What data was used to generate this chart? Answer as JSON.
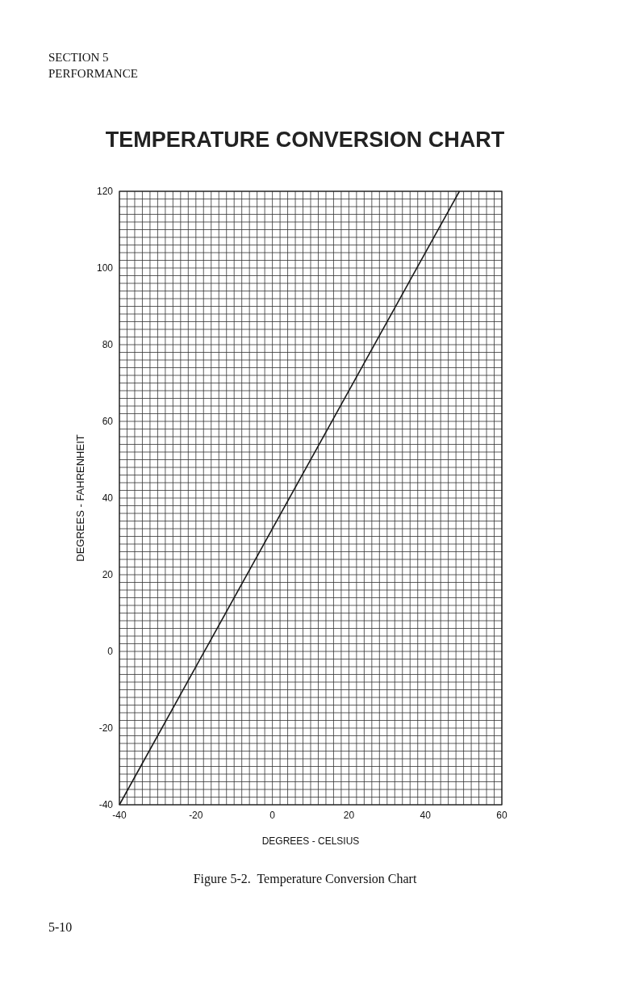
{
  "chart_data": {
    "type": "line",
    "title": "TEMPERATURE CONVERSION CHART",
    "xlabel": "DEGREES - CELSIUS",
    "ylabel": "DEGREES - FAHRENHEIT",
    "annotations": [
      "SECTION 5",
      "PERFORMANCE",
      "Figure 5-2.  Temperature Conversion Chart",
      "5-10"
    ],
    "series": [
      {
        "color": "#1a1a1a",
        "x": [
          -40,
          48.9
        ],
        "values": [
          -40,
          120
        ]
      }
    ],
    "xlim": [
      -40,
      60
    ],
    "ylim": [
      -40,
      120
    ],
    "xticks": [
      -40,
      {
        "value": -38,
        "label": null
      },
      {
        "value": -36,
        "label": null
      },
      {
        "value": -34,
        "label": null
      },
      {
        "value": -32,
        "label": null
      },
      {
        "value": -30,
        "label": null
      },
      {
        "value": -28,
        "label": null
      },
      {
        "value": -26,
        "label": null
      },
      {
        "value": -24,
        "label": null
      },
      {
        "value": -22,
        "label": null
      },
      -20,
      {
        "value": -18,
        "label": null
      },
      {
        "value": -16,
        "label": null
      },
      {
        "value": -14,
        "label": null
      },
      {
        "value": -12,
        "label": null
      },
      {
        "value": -10,
        "label": null
      },
      {
        "value": -8,
        "label": null
      },
      {
        "value": -6,
        "label": null
      },
      {
        "value": -4,
        "label": null
      },
      {
        "value": -2,
        "label": null
      },
      0,
      {
        "value": 2,
        "label": null
      },
      {
        "value": 4,
        "label": null
      },
      {
        "value": 6,
        "label": null
      },
      {
        "value": 8,
        "label": null
      },
      {
        "value": 10,
        "label": null
      },
      {
        "value": 12,
        "label": null
      },
      {
        "value": 14,
        "label": null
      },
      {
        "value": 16,
        "label": null
      },
      {
        "value": 18,
        "label": null
      },
      20,
      {
        "value": 22,
        "label": null
      },
      {
        "value": 24,
        "label": null
      },
      {
        "value": 26,
        "label": null
      },
      {
        "value": 28,
        "label": null
      },
      {
        "value": 30,
        "label": null
      },
      {
        "value": 32,
        "label": null
      },
      {
        "value": 34,
        "label": null
      },
      {
        "value": 36,
        "label": null
      },
      {
        "value": 38,
        "label": null
      },
      40,
      {
        "value": 42,
        "label": null
      },
      {
        "value": 44,
        "label": null
      },
      {
        "value": 46,
        "label": null
      },
      {
        "value": 48,
        "label": null
      },
      {
        "value": 50,
        "label": null
      },
      {
        "value": 52,
        "label": null
      },
      {
        "value": 54,
        "label": null
      },
      {
        "value": 56,
        "label": null
      },
      {
        "value": 58,
        "label": null
      },
      60
    ],
    "yticks": [
      -40,
      {
        "value": -38,
        "label": null
      },
      {
        "value": -36,
        "label": null
      },
      {
        "value": -34,
        "label": null
      },
      {
        "value": -32,
        "label": null
      },
      {
        "value": -30,
        "label": null
      },
      {
        "value": -28,
        "label": null
      },
      {
        "value": -26,
        "label": null
      },
      {
        "value": -24,
        "label": null
      },
      {
        "value": -22,
        "label": null
      },
      -20,
      {
        "value": -18,
        "label": null
      },
      {
        "value": -16,
        "label": null
      },
      {
        "value": -14,
        "label": null
      },
      {
        "value": -12,
        "label": null
      },
      {
        "value": -10,
        "label": null
      },
      {
        "value": -8,
        "label": null
      },
      {
        "value": -6,
        "label": null
      },
      {
        "value": -4,
        "label": null
      },
      {
        "value": -2,
        "label": null
      },
      0,
      {
        "value": 2,
        "label": null
      },
      {
        "value": 4,
        "label": null
      },
      {
        "value": 6,
        "label": null
      },
      {
        "value": 8,
        "label": null
      },
      {
        "value": 10,
        "label": null
      },
      {
        "value": 12,
        "label": null
      },
      {
        "value": 14,
        "label": null
      },
      {
        "value": 16,
        "label": null
      },
      {
        "value": 18,
        "label": null
      },
      20,
      {
        "value": 22,
        "label": null
      },
      {
        "value": 24,
        "label": null
      },
      {
        "value": 26,
        "label": null
      },
      {
        "value": 28,
        "label": null
      },
      {
        "value": 30,
        "label": null
      },
      {
        "value": 32,
        "label": null
      },
      {
        "value": 34,
        "label": null
      },
      {
        "value": 36,
        "label": null
      },
      {
        "value": 38,
        "label": null
      },
      40,
      {
        "value": 42,
        "label": null
      },
      {
        "value": 44,
        "label": null
      },
      {
        "value": 46,
        "label": null
      },
      {
        "value": 48,
        "label": null
      },
      {
        "value": 50,
        "label": null
      },
      {
        "value": 52,
        "label": null
      },
      {
        "value": 54,
        "label": null
      },
      {
        "value": 56,
        "label": null
      },
      {
        "value": 58,
        "label": null
      },
      60,
      {
        "value": 62,
        "label": null
      },
      {
        "value": 64,
        "label": null
      },
      {
        "value": 66,
        "label": null
      },
      {
        "value": 68,
        "label": null
      },
      {
        "value": 70,
        "label": null
      },
      {
        "value": 72,
        "label": null
      },
      {
        "value": 74,
        "label": null
      },
      {
        "value": 76,
        "label": null
      },
      {
        "value": 78,
        "label": null
      },
      80,
      {
        "value": 82,
        "label": null
      },
      {
        "value": 84,
        "label": null
      },
      {
        "value": 86,
        "label": null
      },
      {
        "value": 88,
        "label": null
      },
      {
        "value": 90,
        "label": null
      },
      {
        "value": 92,
        "label": null
      },
      {
        "value": 94,
        "label": null
      },
      {
        "value": 96,
        "label": null
      },
      {
        "value": 98,
        "label": null
      },
      100,
      {
        "value": 102,
        "label": null
      },
      {
        "value": 104,
        "label": null
      },
      {
        "value": 106,
        "label": null
      },
      {
        "value": 108,
        "label": null
      },
      {
        "value": 110,
        "label": null
      },
      {
        "value": 112,
        "label": null
      },
      {
        "value": 114,
        "label": null
      },
      {
        "value": 116,
        "label": null
      },
      {
        "value": 118,
        "label": null
      },
      120
    ],
    "grid": true
  }
}
